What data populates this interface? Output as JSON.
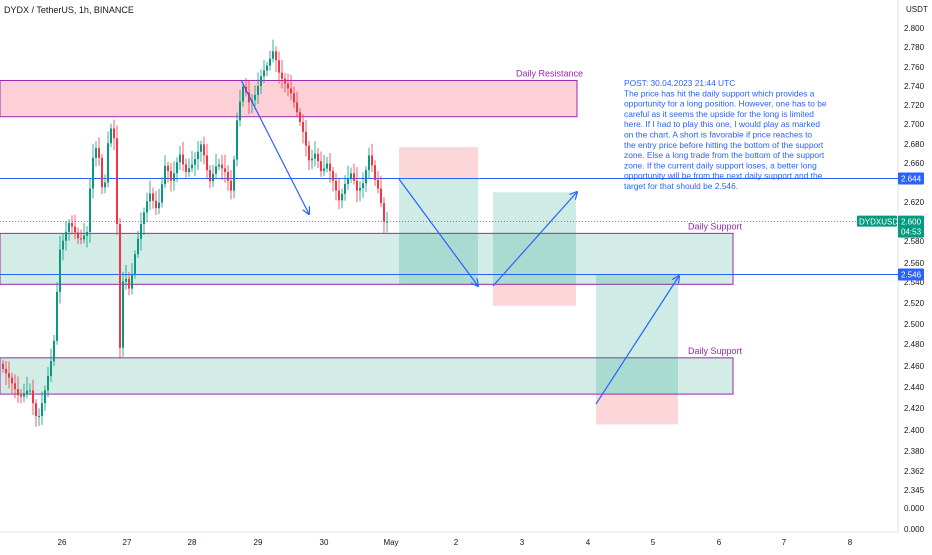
{
  "header": {
    "symbol_title": "DYDX / TetherUS, 1h, BINANCE",
    "currency": "USDT"
  },
  "chart_data": {
    "type": "candlestick",
    "title": "DYDX / TetherUS, 1h, BINANCE",
    "x_tick_labels": [
      "26",
      "27",
      "28",
      "29",
      "30",
      "May",
      "2",
      "3",
      "4",
      "5",
      "6",
      "7",
      "8"
    ],
    "y_tick_labels": [
      "2.800",
      "2.780",
      "2.760",
      "2.740",
      "2.720",
      "2.700",
      "2.680",
      "2.660",
      "2.620",
      "2.600",
      "2.580",
      "2.560",
      "2.540",
      "2.520",
      "2.500",
      "2.480",
      "2.460",
      "2.440",
      "2.420",
      "2.400",
      "2.380",
      "2.362",
      "2.345",
      "0.000",
      "0.000"
    ],
    "y_unit": "USDT",
    "price_range_visible": [
      2.345,
      2.8
    ],
    "current_price": {
      "symbol": "DYDXUSDT",
      "value": "2.600",
      "countdown": "04:53",
      "color": "#089981"
    },
    "horizontal_lines": [
      {
        "label": "2.644",
        "value": 2.644,
        "color": "#2962ff"
      },
      {
        "label": "2.546",
        "value": 2.546,
        "color": "#2962ff"
      }
    ],
    "zones": [
      {
        "label": "Daily Resistance",
        "from": 2.707,
        "to": 2.744,
        "fill": "#fbc8cf",
        "border": "#9c27b0"
      },
      {
        "label": "Daily Support",
        "from": 2.536,
        "to": 2.588,
        "fill": "#cbe9e0",
        "border": "#9c27b0"
      },
      {
        "label": "Daily Support",
        "from": 2.424,
        "to": 2.461,
        "fill": "#cbe9e0",
        "border": "#9c27b0"
      }
    ],
    "trade_setups": [
      {
        "direction": "short",
        "entry": 2.644,
        "target": 2.536,
        "stop": 2.676
      },
      {
        "direction": "long",
        "entry": 2.536,
        "target": 2.63,
        "stop": 2.514
      },
      {
        "direction": "long",
        "entry": 2.424,
        "target": 2.546,
        "stop": 2.393
      }
    ],
    "colors": {
      "up": "#089981",
      "down": "#f23645",
      "line": "#2962ff",
      "zone_border": "#9c27b0"
    }
  },
  "annotation": {
    "note": "POST: 30.04.2023 21:44 UTC\nThe price has hit the daily support which provides a opportunity for a long position. However, one has to be careful as it seems the upside for the long is limited here. If I had to play this one, I would play as marked on the chart. A short is favorable if price reaches to the entry price before hitting the bottom of the support zone. Else a long trade from the bottom of the support zone. If the current daily support loses, a better long opportunity will be from the next daily support and the target for that should be 2.546."
  }
}
